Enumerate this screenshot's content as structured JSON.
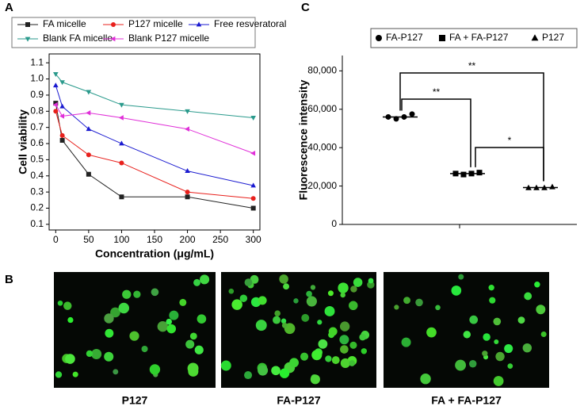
{
  "chart_data": [
    {
      "type": "line",
      "panel": "A",
      "x_label": "Concentration (μg/mL)",
      "y_label": "Cell viability",
      "x": [
        0,
        10,
        50,
        100,
        200,
        300
      ],
      "xlim": [
        -10,
        310
      ],
      "xticks": [
        0,
        50,
        100,
        150,
        200,
        250,
        300
      ],
      "ylim": [
        0.065,
        1.155
      ],
      "yticks": [
        0.1,
        0.2,
        0.3,
        0.4,
        0.5,
        0.6,
        0.7,
        0.8,
        0.9,
        {
          "value": 1,
          "label": "1.0"
        },
        1.1
      ],
      "series": [
        {
          "name": "FA micelle",
          "color": "#222222",
          "marker": "square",
          "values": [
            0.85,
            0.62,
            0.41,
            0.27,
            0.27,
            0.2
          ]
        },
        {
          "name": "P127 micelle",
          "color": "#e8201c",
          "marker": "circle",
          "values": [
            0.8,
            0.65,
            0.53,
            0.48,
            0.3,
            0.26
          ]
        },
        {
          "name": "Free resveratoral",
          "color": "#1a1ad0",
          "marker": "triangle-up",
          "values": [
            0.96,
            0.83,
            0.69,
            0.6,
            0.43,
            0.34
          ]
        },
        {
          "name": "Blank FA micelle",
          "color": "#2a9a8c",
          "marker": "triangle-down",
          "values": [
            1.03,
            0.98,
            0.92,
            0.84,
            0.8,
            0.76
          ]
        },
        {
          "name": "Blank P127 micelle",
          "color": "#e030d8",
          "marker": "triangle-left",
          "values": [
            0.84,
            0.77,
            0.79,
            0.76,
            0.69,
            0.54
          ]
        }
      ]
    },
    {
      "type": "dot",
      "panel": "C",
      "y_label": "Fluorescence intensity",
      "ylim": [
        0,
        88000
      ],
      "yticks": [
        0,
        {
          "value": 20000,
          "label": "20,000"
        },
        {
          "value": 40000,
          "label": "40,000"
        },
        {
          "value": 60000,
          "label": "60,000"
        },
        {
          "value": 80000,
          "label": "80,000"
        }
      ],
      "series": [
        {
          "name": "FA-P127",
          "color": "#000000",
          "marker": "circle",
          "values": [
            56000,
            55000,
            56000,
            57500
          ],
          "mean": 56000
        },
        {
          "name": "FA + FA-P127",
          "color": "#000000",
          "marker": "square",
          "values": [
            26500,
            26000,
            26500,
            27000
          ],
          "mean": 26500
        },
        {
          "name": "P127",
          "color": "#000000",
          "marker": "triangle-up",
          "values": [
            19000,
            19000,
            19000,
            19500
          ],
          "mean": 19200
        }
      ],
      "annotations": [
        "**",
        "**",
        "*"
      ]
    }
  ],
  "micrographs": {
    "panel": "B",
    "labels": [
      "P127",
      "FA-P127",
      "FA + FA-P127"
    ]
  }
}
